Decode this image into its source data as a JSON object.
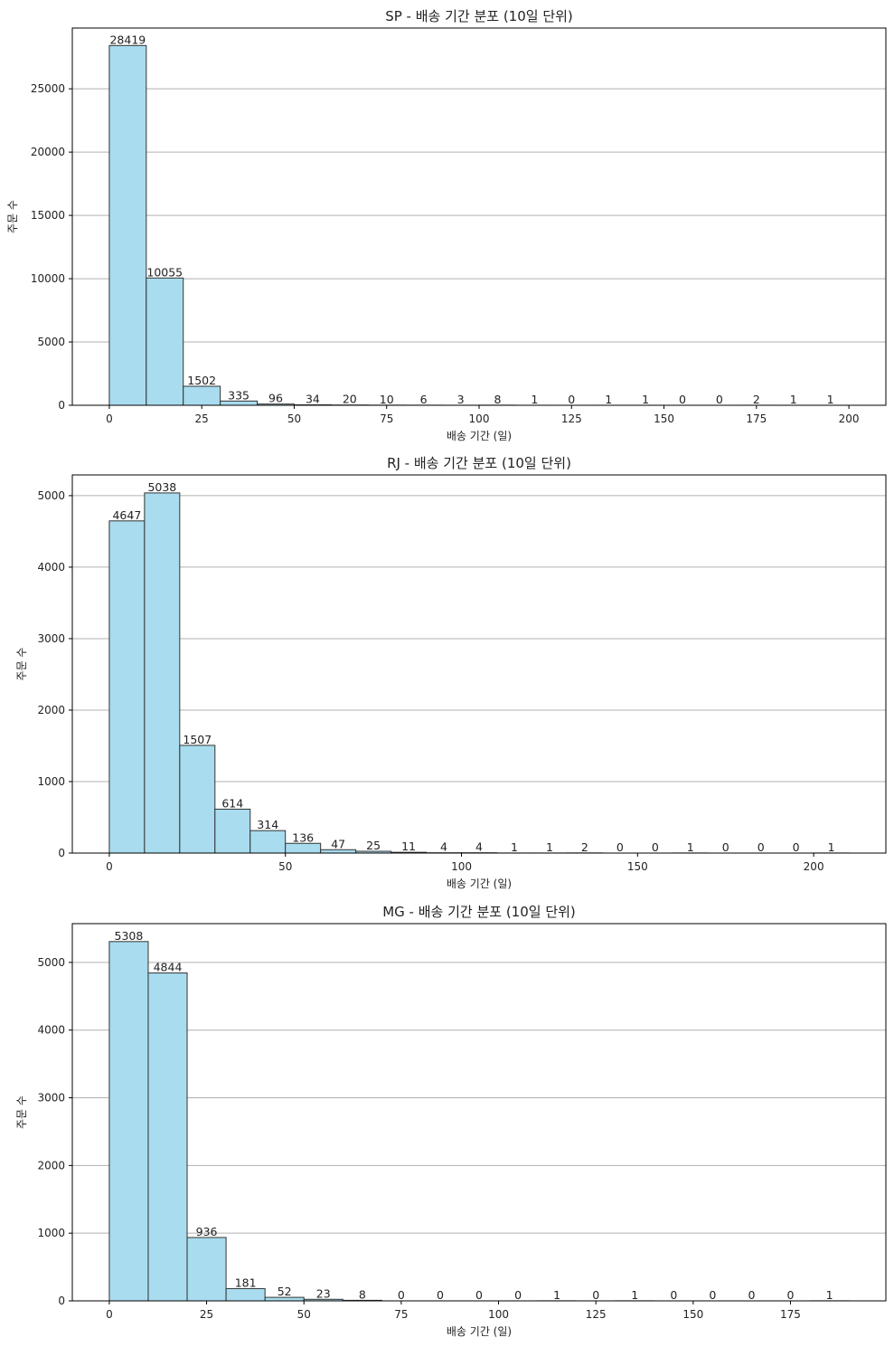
{
  "chart_data": [
    {
      "type": "bar",
      "title": "SP - 배송 기간 분포 (10일 단위)",
      "xlabel": "배송 기간 (일)",
      "ylabel": "주문 수",
      "bin_width": 10,
      "x_start": 0,
      "values": [
        28419,
        10055,
        1502,
        335,
        96,
        34,
        20,
        10,
        6,
        3,
        8,
        1,
        0,
        1,
        1,
        0,
        0,
        2,
        1,
        1
      ],
      "xlim": [
        -10,
        210
      ],
      "ylim": [
        0,
        29800
      ],
      "xticks": [
        0,
        25,
        50,
        75,
        100,
        125,
        150,
        175,
        200
      ],
      "yticks": [
        0,
        5000,
        10000,
        15000,
        20000,
        25000
      ],
      "grid": "y",
      "legend": "none"
    },
    {
      "type": "bar",
      "title": "RJ - 배송 기간 분포 (10일 단위)",
      "xlabel": "배송 기간 (일)",
      "ylabel": "주문 수",
      "bin_width": 10,
      "x_start": 0,
      "values": [
        4647,
        5038,
        1507,
        614,
        314,
        136,
        47,
        25,
        11,
        4,
        4,
        1,
        1,
        2,
        0,
        0,
        1,
        0,
        0,
        0,
        1
      ],
      "xlim": [
        -10.5,
        220.5
      ],
      "ylim": [
        0,
        5290
      ],
      "xticks": [
        0,
        50,
        100,
        150,
        200
      ],
      "yticks": [
        0,
        1000,
        2000,
        3000,
        4000,
        5000
      ],
      "grid": "y",
      "legend": "none"
    },
    {
      "type": "bar",
      "title": "MG - 배송 기간 분포 (10일 단위)",
      "xlabel": "배송 기간 (일)",
      "ylabel": "주문 수",
      "bin_width": 10,
      "x_start": 0,
      "values": [
        5308,
        4844,
        936,
        181,
        52,
        23,
        8,
        0,
        0,
        0,
        0,
        1,
        0,
        1,
        0,
        0,
        0,
        0,
        1
      ],
      "xlim": [
        -9.5,
        199.5
      ],
      "ylim": [
        0,
        5573
      ],
      "xticks": [
        0,
        25,
        50,
        75,
        100,
        125,
        150,
        175
      ],
      "yticks": [
        0,
        1000,
        2000,
        3000,
        4000,
        5000
      ],
      "grid": "y",
      "legend": "none"
    }
  ],
  "style": {
    "bar_fill": "#a8dcee",
    "bar_edge": "#333333",
    "grid_color": "#b0b0b0",
    "axis_color": "#000000"
  }
}
